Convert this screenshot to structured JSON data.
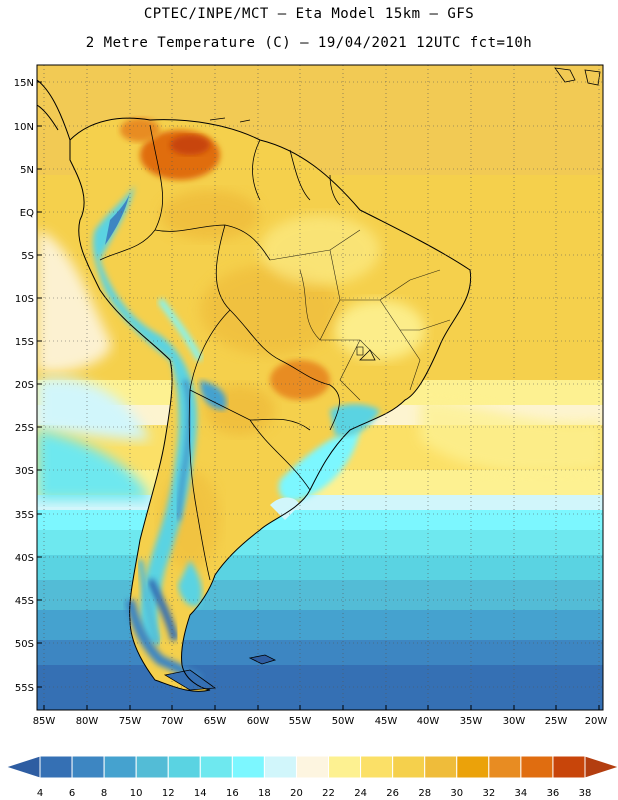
{
  "title_line1": "CPTEC/INPE/MCT –  Eta Model 15km – GFS",
  "title_line2": "2 Metre Temperature (C) – 19/04/2021 12UTC fct=10h",
  "map": {
    "region": "South America",
    "lat_labels": [
      "15N",
      "10N",
      "5N",
      "EQ",
      "5S",
      "10S",
      "15S",
      "20S",
      "25S",
      "30S",
      "35S",
      "40S",
      "45S",
      "50S",
      "55S"
    ],
    "lon_labels": [
      "85W",
      "80W",
      "75W",
      "70W",
      "65W",
      "60W",
      "55W",
      "50W",
      "45W",
      "40W",
      "35W",
      "30W",
      "25W",
      "20W"
    ],
    "grid": "dotted"
  },
  "legend": {
    "values": [
      "4",
      "6",
      "8",
      "10",
      "12",
      "14",
      "16",
      "18",
      "20",
      "22",
      "24",
      "26",
      "28",
      "30",
      "32",
      "34",
      "36",
      "38"
    ],
    "colors": [
      "#2e5da2",
      "#3570b4",
      "#3d86c2",
      "#45a2cf",
      "#53bcd6",
      "#5ad3e2",
      "#6ee8ef",
      "#7cf7ff",
      "#d1f6fb",
      "#fdf5e0",
      "#fdf191",
      "#fbe067",
      "#f5d04c",
      "#efbc3a",
      "#eba20a",
      "#e88c22",
      "#e06d10",
      "#c8450a",
      "#b33e10"
    ]
  }
}
